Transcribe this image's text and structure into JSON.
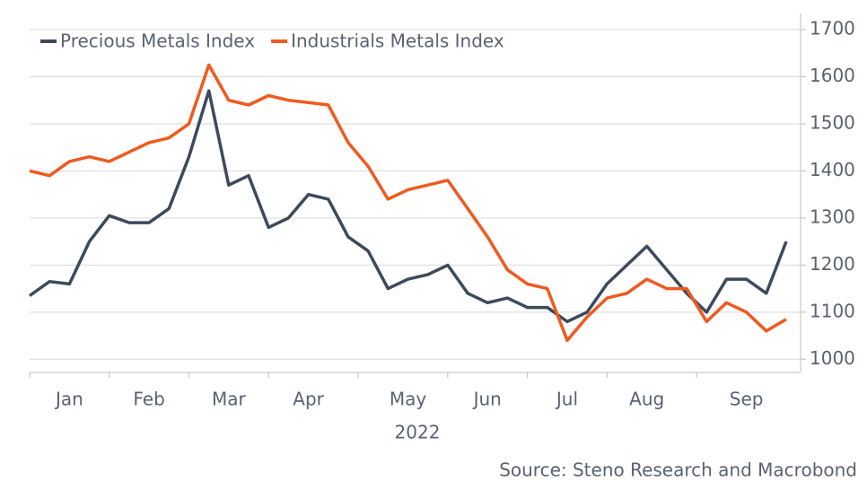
{
  "chart_data": {
    "type": "line",
    "x_label": "2022",
    "source": "Source: Steno Research and Macrobond",
    "categories": [
      null,
      null,
      "Jan",
      null,
      null,
      null,
      "Feb",
      null,
      null,
      null,
      "Mar",
      null,
      null,
      null,
      "Apr",
      null,
      null,
      null,
      null,
      "May",
      null,
      null,
      null,
      "Jun",
      null,
      null,
      null,
      "Jul",
      null,
      null,
      null,
      "Aug",
      null,
      null,
      null,
      null,
      "Sep",
      null,
      null
    ],
    "series": [
      {
        "name": "Precious Metals Index",
        "color": "#3d4a5c",
        "values": [
          1135,
          1165,
          1160,
          1250,
          1305,
          1290,
          1290,
          1320,
          1430,
          1570,
          1370,
          1390,
          1280,
          1300,
          1350,
          1340,
          1260,
          1230,
          1150,
          1170,
          1180,
          1200,
          1140,
          1120,
          1130,
          1110,
          1110,
          1080,
          1100,
          1160,
          1200,
          1240,
          1190,
          1140,
          1100,
          1170,
          1170,
          1140,
          1250
        ]
      },
      {
        "name": "Industrials Metals Index",
        "color": "#f05a1e",
        "values": [
          1400,
          1390,
          1420,
          1430,
          1420,
          1440,
          1460,
          1470,
          1500,
          1625,
          1550,
          1540,
          1560,
          1550,
          1545,
          1540,
          1460,
          1410,
          1340,
          1360,
          1370,
          1380,
          1320,
          1260,
          1190,
          1160,
          1150,
          1040,
          1090,
          1130,
          1140,
          1170,
          1150,
          1150,
          1080,
          1120,
          1100,
          1060,
          1085
        ]
      }
    ],
    "ylim": [
      972,
      1700
    ],
    "yticks": [
      1000,
      1100,
      1200,
      1300,
      1400,
      1500,
      1600,
      1700
    ],
    "grid": true,
    "y_axis_side": "right",
    "legend": "top-left"
  }
}
